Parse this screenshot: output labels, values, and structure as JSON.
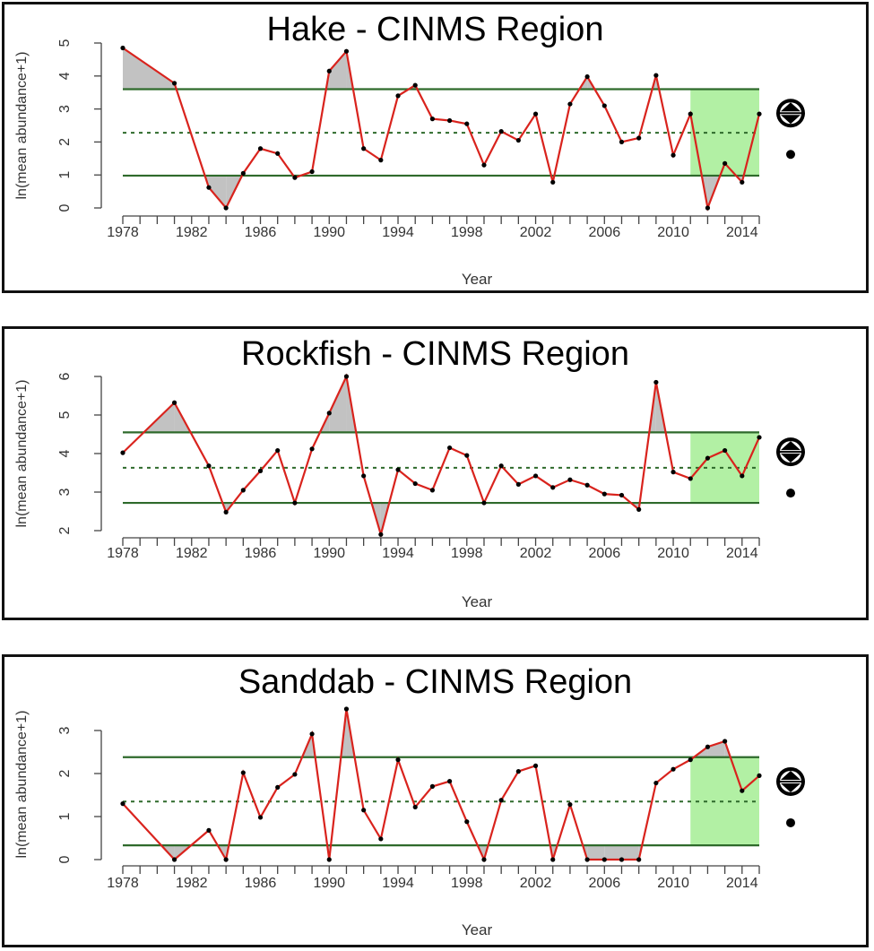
{
  "chart_data": [
    {
      "type": "line",
      "title": "Hake - CINMS Region",
      "xlabel": "Year",
      "ylabel": "ln(mean abundance+1)",
      "xlim": [
        1978,
        2015
      ],
      "ylim": [
        0,
        5
      ],
      "yticks": [
        0,
        1,
        2,
        3,
        4,
        5
      ],
      "xticks": [
        1978,
        1982,
        1986,
        1990,
        1994,
        1998,
        2002,
        2006,
        2010,
        2014
      ],
      "mean": 2.28,
      "upper": 3.6,
      "lower": 0.98,
      "recent_start": 2011,
      "x": [
        1978,
        1981,
        1983,
        1984,
        1985,
        1986,
        1987,
        1988,
        1989,
        1990,
        1991,
        1992,
        1993,
        1994,
        1995,
        1996,
        1997,
        1998,
        1999,
        2000,
        2001,
        2002,
        2003,
        2004,
        2005,
        2006,
        2007,
        2008,
        2009,
        2010,
        2011,
        2012,
        2013,
        2014,
        2015
      ],
      "y": [
        4.85,
        3.78,
        0.62,
        0.0,
        1.05,
        1.8,
        1.65,
        0.92,
        1.1,
        4.15,
        4.75,
        1.8,
        1.45,
        3.4,
        3.72,
        2.7,
        2.65,
        2.55,
        1.3,
        2.32,
        2.05,
        2.85,
        0.78,
        3.15,
        3.98,
        3.1,
        2.0,
        2.12,
        4.02,
        1.6,
        2.85,
        0.0,
        1.35,
        0.78,
        2.85
      ],
      "trend_symbol": "up-down-arrow-circle",
      "recent_mean_symbol": "dot-within-1sd"
    },
    {
      "type": "line",
      "title": "Rockfish - CINMS Region",
      "xlabel": "Year",
      "ylabel": "ln(mean abundance+1)",
      "xlim": [
        1978,
        2015
      ],
      "ylim": [
        2,
        6
      ],
      "yticks": [
        2,
        3,
        4,
        5,
        6
      ],
      "xticks": [
        1978,
        1982,
        1986,
        1990,
        1994,
        1998,
        2002,
        2006,
        2010,
        2014
      ],
      "mean": 3.63,
      "upper": 4.55,
      "lower": 2.72,
      "recent_start": 2011,
      "x": [
        1978,
        1981,
        1983,
        1984,
        1985,
        1986,
        1987,
        1988,
        1989,
        1990,
        1991,
        1992,
        1993,
        1994,
        1995,
        1996,
        1997,
        1998,
        1999,
        2000,
        2001,
        2002,
        2003,
        2004,
        2005,
        2006,
        2007,
        2008,
        2009,
        2010,
        2011,
        2012,
        2013,
        2014,
        2015
      ],
      "y": [
        4.02,
        5.32,
        3.68,
        2.48,
        3.05,
        3.55,
        4.08,
        2.72,
        4.12,
        5.05,
        6.0,
        3.42,
        1.9,
        3.58,
        3.22,
        3.05,
        4.15,
        3.95,
        2.72,
        3.68,
        3.2,
        3.42,
        3.12,
        3.32,
        3.18,
        2.95,
        2.92,
        2.55,
        5.85,
        3.52,
        3.35,
        3.88,
        4.08,
        3.42,
        4.42
      ],
      "trend_symbol": "up-down-arrow-circle",
      "recent_mean_symbol": "dot-within-1sd"
    },
    {
      "type": "line",
      "title": "Sanddab - CINMS Region",
      "xlabel": "Year",
      "ylabel": "ln(mean abundance+1)",
      "xlim": [
        1978,
        2015
      ],
      "ylim": [
        0,
        3.5
      ],
      "yticks": [
        0,
        1,
        2,
        3
      ],
      "xticks": [
        1978,
        1982,
        1986,
        1990,
        1994,
        1998,
        2002,
        2006,
        2010,
        2014
      ],
      "mean": 1.35,
      "upper": 2.38,
      "lower": 0.33,
      "recent_start": 2011,
      "x": [
        1978,
        1981,
        1983,
        1984,
        1985,
        1986,
        1987,
        1988,
        1989,
        1990,
        1991,
        1992,
        1993,
        1994,
        1995,
        1996,
        1997,
        1998,
        1999,
        2000,
        2001,
        2002,
        2003,
        2004,
        2005,
        2006,
        2007,
        2008,
        2009,
        2010,
        2011,
        2012,
        2013,
        2014,
        2015
      ],
      "y": [
        1.3,
        0.0,
        0.68,
        0.0,
        2.02,
        0.98,
        1.68,
        1.98,
        2.92,
        0.0,
        3.5,
        1.15,
        0.48,
        2.32,
        1.22,
        1.7,
        1.82,
        0.88,
        0.0,
        1.38,
        2.05,
        2.18,
        0.0,
        1.28,
        0.0,
        0.0,
        0.0,
        0.0,
        1.78,
        2.1,
        2.32,
        2.62,
        2.75,
        1.6,
        1.95
      ],
      "trend_symbol": "up-down-arrow-circle",
      "recent_mean_symbol": "dot-within-1sd"
    }
  ],
  "colors": {
    "series": "#d9231d",
    "band_lines": "#2e6a2b",
    "exceed_fill": "#c2c2c2",
    "recent_fill": "#b2f0a4",
    "axis": "#444444",
    "frame": "#111111"
  }
}
